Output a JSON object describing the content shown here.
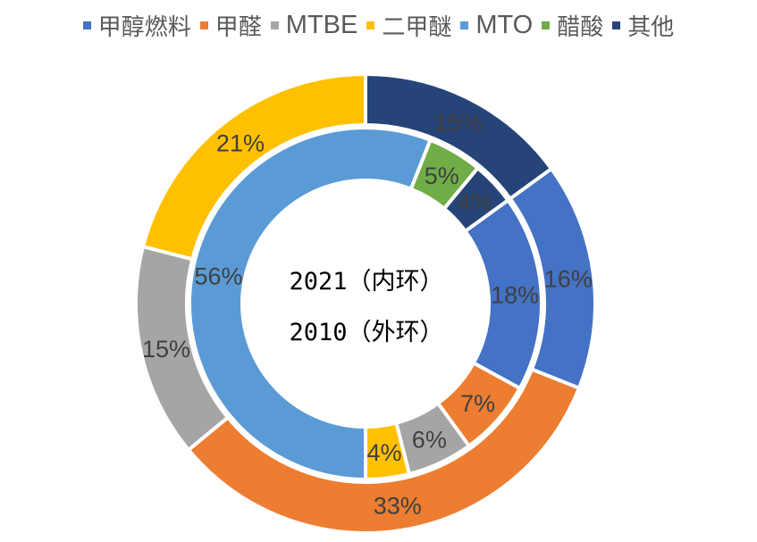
{
  "chart_data": {
    "type": "doughnut",
    "categories": [
      "甲醇燃料",
      "甲醛",
      "MTBE",
      "二甲醚",
      "MTO",
      "醋酸",
      "其他"
    ],
    "colors": [
      "#4472C4",
      "#ED7D31",
      "#A5A5A5",
      "#FFC000",
      "#5B9BD5",
      "#70AD47",
      "#264478"
    ],
    "series": [
      {
        "name": "2021（内环）",
        "ring": "inner",
        "values": [
          18,
          7,
          6,
          4,
          56,
          5,
          4
        ]
      },
      {
        "name": "2010（外环）",
        "ring": "outer",
        "values": [
          16,
          33,
          15,
          21,
          0,
          0,
          15
        ]
      }
    ],
    "unit": "%",
    "first_slice_angle_deg": 54,
    "legend_position": "top"
  }
}
